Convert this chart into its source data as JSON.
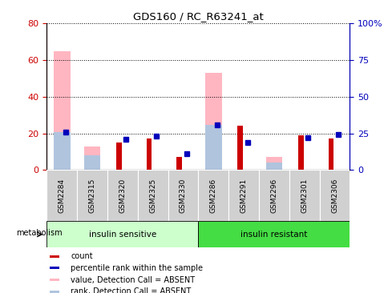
{
  "title": "GDS160 / RC_R63241_at",
  "samples": [
    "GSM2284",
    "GSM2315",
    "GSM2320",
    "GSM2325",
    "GSM2330",
    "GSM2286",
    "GSM2291",
    "GSM2296",
    "GSM2301",
    "GSM2306"
  ],
  "groups": [
    {
      "label": "insulin sensitive",
      "start": 0,
      "end": 5,
      "color": "#AAFFAA"
    },
    {
      "label": "insulin resistant",
      "start": 5,
      "end": 10,
      "color": "#44DD44"
    }
  ],
  "count": [
    0,
    0,
    15,
    17,
    7,
    0,
    24,
    0,
    19,
    17
  ],
  "percentile_rank": [
    26,
    0,
    21,
    23,
    11,
    31,
    19,
    0,
    22,
    24
  ],
  "value_absent": [
    65,
    13,
    0,
    0,
    0,
    53,
    0,
    7,
    0,
    0
  ],
  "rank_absent": [
    26,
    10,
    0,
    0,
    0,
    31,
    0,
    5,
    0,
    0
  ],
  "ylim_left": [
    0,
    80
  ],
  "ylim_right": [
    0,
    100
  ],
  "yticks_left": [
    0,
    20,
    40,
    60,
    80
  ],
  "yticks_right": [
    0,
    25,
    50,
    75,
    100
  ],
  "yticklabels_right": [
    "0",
    "25",
    "50",
    "75",
    "100%"
  ],
  "left_axis_color": "#CC0000",
  "right_axis_color": "#0000BB",
  "legend_items": [
    {
      "label": "count",
      "color": "#CC0000"
    },
    {
      "label": "percentile rank within the sample",
      "color": "#0000BB"
    },
    {
      "label": "value, Detection Call = ABSENT",
      "color": "#FFB6C1"
    },
    {
      "label": "rank, Detection Call = ABSENT",
      "color": "#B0C4DE"
    }
  ],
  "group_label": "metabolism"
}
